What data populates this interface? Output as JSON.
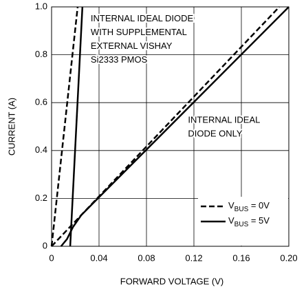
{
  "chart_data": {
    "type": "line",
    "xlabel": "FORWARD VOLTAGE (V)",
    "ylabel": "CURRENT (A)",
    "xlim": [
      0,
      0.2
    ],
    "ylim": [
      0,
      1
    ],
    "xticks": [
      0,
      0.04,
      0.08,
      0.12,
      0.16,
      {
        "value": 0.2,
        "label": "0.20"
      }
    ],
    "yticks": [
      0,
      0.2,
      0.4,
      0.6,
      0.8,
      {
        "value": 1,
        "label": "1.0"
      }
    ],
    "grid": true,
    "legend_position": "lower right",
    "legend": [
      {
        "symbol": "V",
        "subscript": "BUS",
        "text": " = 0V",
        "dash": true
      },
      {
        "symbol": "V",
        "subscript": "BUS",
        "text": " = 5V",
        "dash": false
      }
    ],
    "series": [
      {
        "color": "#000000",
        "dash": true,
        "x": [
          0,
          0.192
        ],
        "values": [
          0,
          1
        ]
      },
      {
        "color": "#000000",
        "dash": false,
        "x": [
          0.008,
          0.013,
          0.018,
          0.025,
          0.035,
          0.2
        ],
        "values": [
          0,
          0.03,
          0.08,
          0.13,
          0.18,
          1
        ]
      },
      {
        "color": "#000000",
        "dash": true,
        "x": [
          0,
          0.022
        ],
        "values": [
          0,
          1
        ]
      },
      {
        "color": "#000000",
        "dash": false,
        "x": [
          0.0157,
          0.026
        ],
        "values": [
          0,
          1
        ]
      }
    ],
    "annotations": [
      {
        "lines": [
          "INTERNAL IDEAL DIODE",
          "WITH SUPPLEMENTAL",
          "EXTERNAL VISHAY",
          "Si2333 PMOS"
        ],
        "x": 0.033,
        "y": 0.95
      },
      {
        "lines": [
          "INTERNAL IDEAL",
          "DIODE ONLY"
        ],
        "x": 0.115,
        "y": 0.525
      }
    ]
  }
}
